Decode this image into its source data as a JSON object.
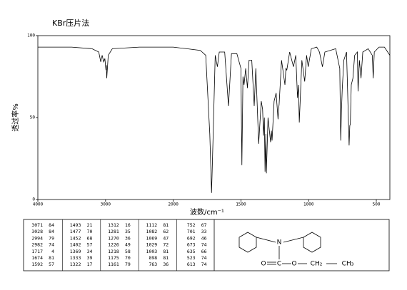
{
  "chart_data": {
    "type": "line",
    "title": "KBr压片法",
    "xlabel": "波数/cm⁻¹",
    "ylabel": "透过率%",
    "color": "#000000",
    "xlim": [
      4000,
      400
    ],
    "ylim": [
      0,
      100
    ],
    "xticks": [
      4000,
      3000,
      2000,
      1500,
      1000,
      500
    ],
    "yticks": [
      0,
      50,
      100
    ],
    "x": [
      4000,
      3500,
      3200,
      3100,
      3071,
      3050,
      3028,
      3010,
      2994,
      2988,
      2982,
      2960,
      2900,
      2500,
      2200,
      2000,
      1900,
      1800,
      1760,
      1730,
      1717,
      1705,
      1690,
      1674,
      1660,
      1620,
      1592,
      1570,
      1530,
      1500,
      1493,
      1485,
      1477,
      1465,
      1452,
      1440,
      1420,
      1402,
      1390,
      1369,
      1350,
      1340,
      1333,
      1327,
      1322,
      1316,
      1312,
      1300,
      1281,
      1275,
      1270,
      1255,
      1240,
      1226,
      1222,
      1218,
      1200,
      1175,
      1168,
      1161,
      1140,
      1112,
      1095,
      1082,
      1075,
      1069,
      1050,
      1029,
      1015,
      1003,
      980,
      940,
      920,
      898,
      880,
      800,
      770,
      763,
      757,
      752,
      740,
      720,
      701,
      696,
      692,
      685,
      673,
      660,
      640,
      635,
      625,
      613,
      600,
      560,
      530,
      523,
      515,
      480,
      440,
      400
    ],
    "values": [
      93,
      93,
      92,
      90,
      84,
      88,
      84,
      86,
      79,
      82,
      74,
      88,
      92,
      93,
      93,
      93,
      92,
      91,
      88,
      40,
      4,
      40,
      88,
      81,
      90,
      90,
      57,
      89,
      89,
      80,
      21,
      75,
      70,
      80,
      68,
      85,
      85,
      57,
      80,
      34,
      60,
      55,
      39,
      50,
      17,
      40,
      16,
      50,
      35,
      42,
      36,
      60,
      65,
      49,
      55,
      58,
      85,
      70,
      80,
      79,
      90,
      81,
      88,
      62,
      70,
      47,
      85,
      72,
      88,
      81,
      92,
      93,
      90,
      81,
      90,
      92,
      80,
      36,
      55,
      67,
      85,
      90,
      33,
      45,
      46,
      70,
      74,
      88,
      90,
      66,
      85,
      74,
      90,
      92,
      88,
      74,
      90,
      93,
      93,
      88
    ]
  },
  "peak_table": {
    "columns": [
      [
        [
          3071,
          84
        ],
        [
          3028,
          84
        ],
        [
          2994,
          79
        ],
        [
          2982,
          74
        ],
        [
          1717,
          4
        ],
        [
          1674,
          81
        ],
        [
          1592,
          57
        ]
      ],
      [
        [
          1493,
          21
        ],
        [
          1477,
          70
        ],
        [
          1452,
          68
        ],
        [
          1402,
          57
        ],
        [
          1369,
          34
        ],
        [
          1333,
          39
        ],
        [
          1322,
          17
        ]
      ],
      [
        [
          1312,
          16
        ],
        [
          1281,
          35
        ],
        [
          1270,
          36
        ],
        [
          1226,
          49
        ],
        [
          1218,
          58
        ],
        [
          1175,
          70
        ],
        [
          1161,
          79
        ]
      ],
      [
        [
          1112,
          81
        ],
        [
          1082,
          62
        ],
        [
          1069,
          47
        ],
        [
          1029,
          72
        ],
        [
          1003,
          81
        ],
        [
          898,
          81
        ],
        [
          763,
          36
        ]
      ],
      [
        [
          752,
          67
        ],
        [
          701,
          33
        ],
        [
          692,
          46
        ],
        [
          673,
          74
        ],
        [
          635,
          66
        ],
        [
          523,
          74
        ],
        [
          613,
          74
        ]
      ]
    ]
  },
  "structure": {
    "n": "N",
    "o_carbonyl": "O",
    "c": "C",
    "o_ester": "O",
    "ch2": "CH₂",
    "ch3": "CH₃"
  }
}
